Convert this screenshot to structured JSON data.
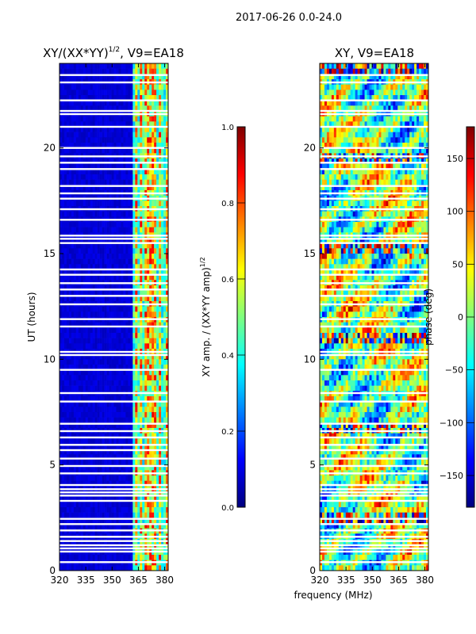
{
  "figure": {
    "suptitle": "2017-06-26 0.0-24.0",
    "xlabel": "frequency (MHz)"
  },
  "colors": {
    "jet": [
      "#00007f",
      "#0000ff",
      "#007fff",
      "#00ffff",
      "#7fff7f",
      "#ffff00",
      "#ff7f00",
      "#ff0000",
      "#7f0000"
    ],
    "blank": "#ffffff"
  },
  "chart_data": [
    {
      "type": "heatmap",
      "title_main": "XY/(XX*YY)",
      "title_sup": "1/2",
      "title_tail": ", V9=EA18",
      "ylabel": "UT (hours)",
      "xlim": [
        320,
        382
      ],
      "ylim": [
        0,
        24
      ],
      "xticks": [
        {
          "value": 320,
          "label": "320"
        },
        {
          "value": 335,
          "label": "335"
        },
        {
          "value": 350,
          "label": "350"
        },
        {
          "value": 365,
          "label": "365"
        },
        {
          "value": 380,
          "label": "380"
        }
      ],
      "yticks": [
        {
          "value": 0,
          "label": "0"
        },
        {
          "value": 5,
          "label": "5"
        },
        {
          "value": 10,
          "label": "10"
        },
        {
          "value": 15,
          "label": "15"
        },
        {
          "value": 20,
          "label": "20"
        }
      ],
      "colorbar": {
        "label_main": "XY amp. / (XX*YY amp)",
        "label_sup": "1/2",
        "range": [
          0.0,
          1.0
        ],
        "ticks": [
          {
            "value": 0.0,
            "label": "0.0"
          },
          {
            "value": 0.2,
            "label": "0.2"
          },
          {
            "value": 0.4,
            "label": "0.4"
          },
          {
            "value": 0.6,
            "label": "0.6"
          },
          {
            "value": 0.8,
            "label": "0.8"
          },
          {
            "value": 1.0,
            "label": "1.0"
          }
        ]
      },
      "mode": "amplitude",
      "background_value": 0.06,
      "bright_columns_mhz": [
        364,
        366.5,
        369,
        371.5,
        374,
        377.5,
        381
      ],
      "bright_value_range": [
        0.4,
        0.9
      ]
    },
    {
      "type": "heatmap",
      "title_main": "XY, V9=EA18",
      "title_sup": "",
      "title_tail": "",
      "ylabel": "",
      "xlim": [
        320,
        382
      ],
      "ylim": [
        0,
        24
      ],
      "xticks": [
        {
          "value": 320,
          "label": "320"
        },
        {
          "value": 335,
          "label": "335"
        },
        {
          "value": 350,
          "label": "350"
        },
        {
          "value": 365,
          "label": "365"
        },
        {
          "value": 380,
          "label": "380"
        }
      ],
      "yticks": [
        {
          "value": 0,
          "label": "0"
        },
        {
          "value": 5,
          "label": "5"
        },
        {
          "value": 10,
          "label": "10"
        },
        {
          "value": 15,
          "label": "15"
        },
        {
          "value": 20,
          "label": "20"
        }
      ],
      "colorbar": {
        "label_main": "phase (deg)",
        "label_sup": "",
        "range": [
          -180,
          180
        ],
        "ticks": [
          {
            "value": -150,
            "label": "−150"
          },
          {
            "value": -100,
            "label": "−100"
          },
          {
            "value": -50,
            "label": "−50"
          },
          {
            "value": 0,
            "label": "0"
          },
          {
            "value": 50,
            "label": "50"
          },
          {
            "value": 100,
            "label": "100"
          },
          {
            "value": 150,
            "label": "150"
          }
        ]
      },
      "mode": "phase",
      "background_value": 0
    }
  ],
  "flagged_ut_hours": [
    0.4,
    0.9,
    1.05,
    1.2,
    1.4,
    1.6,
    1.9,
    2.2,
    2.45,
    3.3,
    3.55,
    3.7,
    3.85,
    4.05,
    4.6,
    4.95,
    5.3,
    5.7,
    5.95,
    6.3,
    6.6,
    6.95,
    8.0,
    8.4,
    9.5,
    10.2,
    10.35,
    11.55,
    11.9,
    12.6,
    13.0,
    13.3,
    13.6,
    14.0,
    14.25,
    15.5,
    15.7,
    15.85,
    16.6,
    17.1,
    17.6,
    17.85,
    18.2,
    19.0,
    19.3,
    19.6,
    20.0,
    21.0,
    21.6,
    21.75,
    22.25,
    23.1,
    23.45
  ]
}
